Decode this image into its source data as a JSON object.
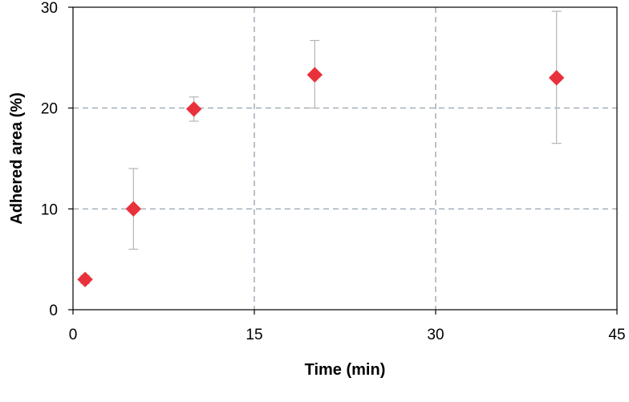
{
  "chart_data": {
    "type": "scatter",
    "title": "",
    "xlabel": "Time (min)",
    "ylabel": "Adhered area (%)",
    "xlim": [
      0,
      45
    ],
    "ylim": [
      0,
      30
    ],
    "x_ticks": [
      0,
      15,
      30,
      45
    ],
    "y_ticks": [
      0,
      10,
      20,
      30
    ],
    "x_tick_labels": [
      "0",
      "15",
      "30",
      "45"
    ],
    "y_tick_labels": [
      "0",
      "10",
      "20",
      "30"
    ],
    "grid": "dashed",
    "legend": "none",
    "marker": "diamond",
    "series": [
      {
        "color": "#e8313a",
        "points": [
          {
            "x": 1,
            "y": 3.0,
            "err_low": 2.6,
            "err_high": 3.4
          },
          {
            "x": 5,
            "y": 10.0,
            "err_low": 6.0,
            "err_high": 14.0
          },
          {
            "x": 10,
            "y": 19.9,
            "err_low": 18.7,
            "err_high": 21.1
          },
          {
            "x": 20,
            "y": 23.3,
            "err_low": 20.0,
            "err_high": 26.7
          },
          {
            "x": 40,
            "y": 23.0,
            "err_low": 16.5,
            "err_high": 29.6
          }
        ]
      }
    ]
  }
}
